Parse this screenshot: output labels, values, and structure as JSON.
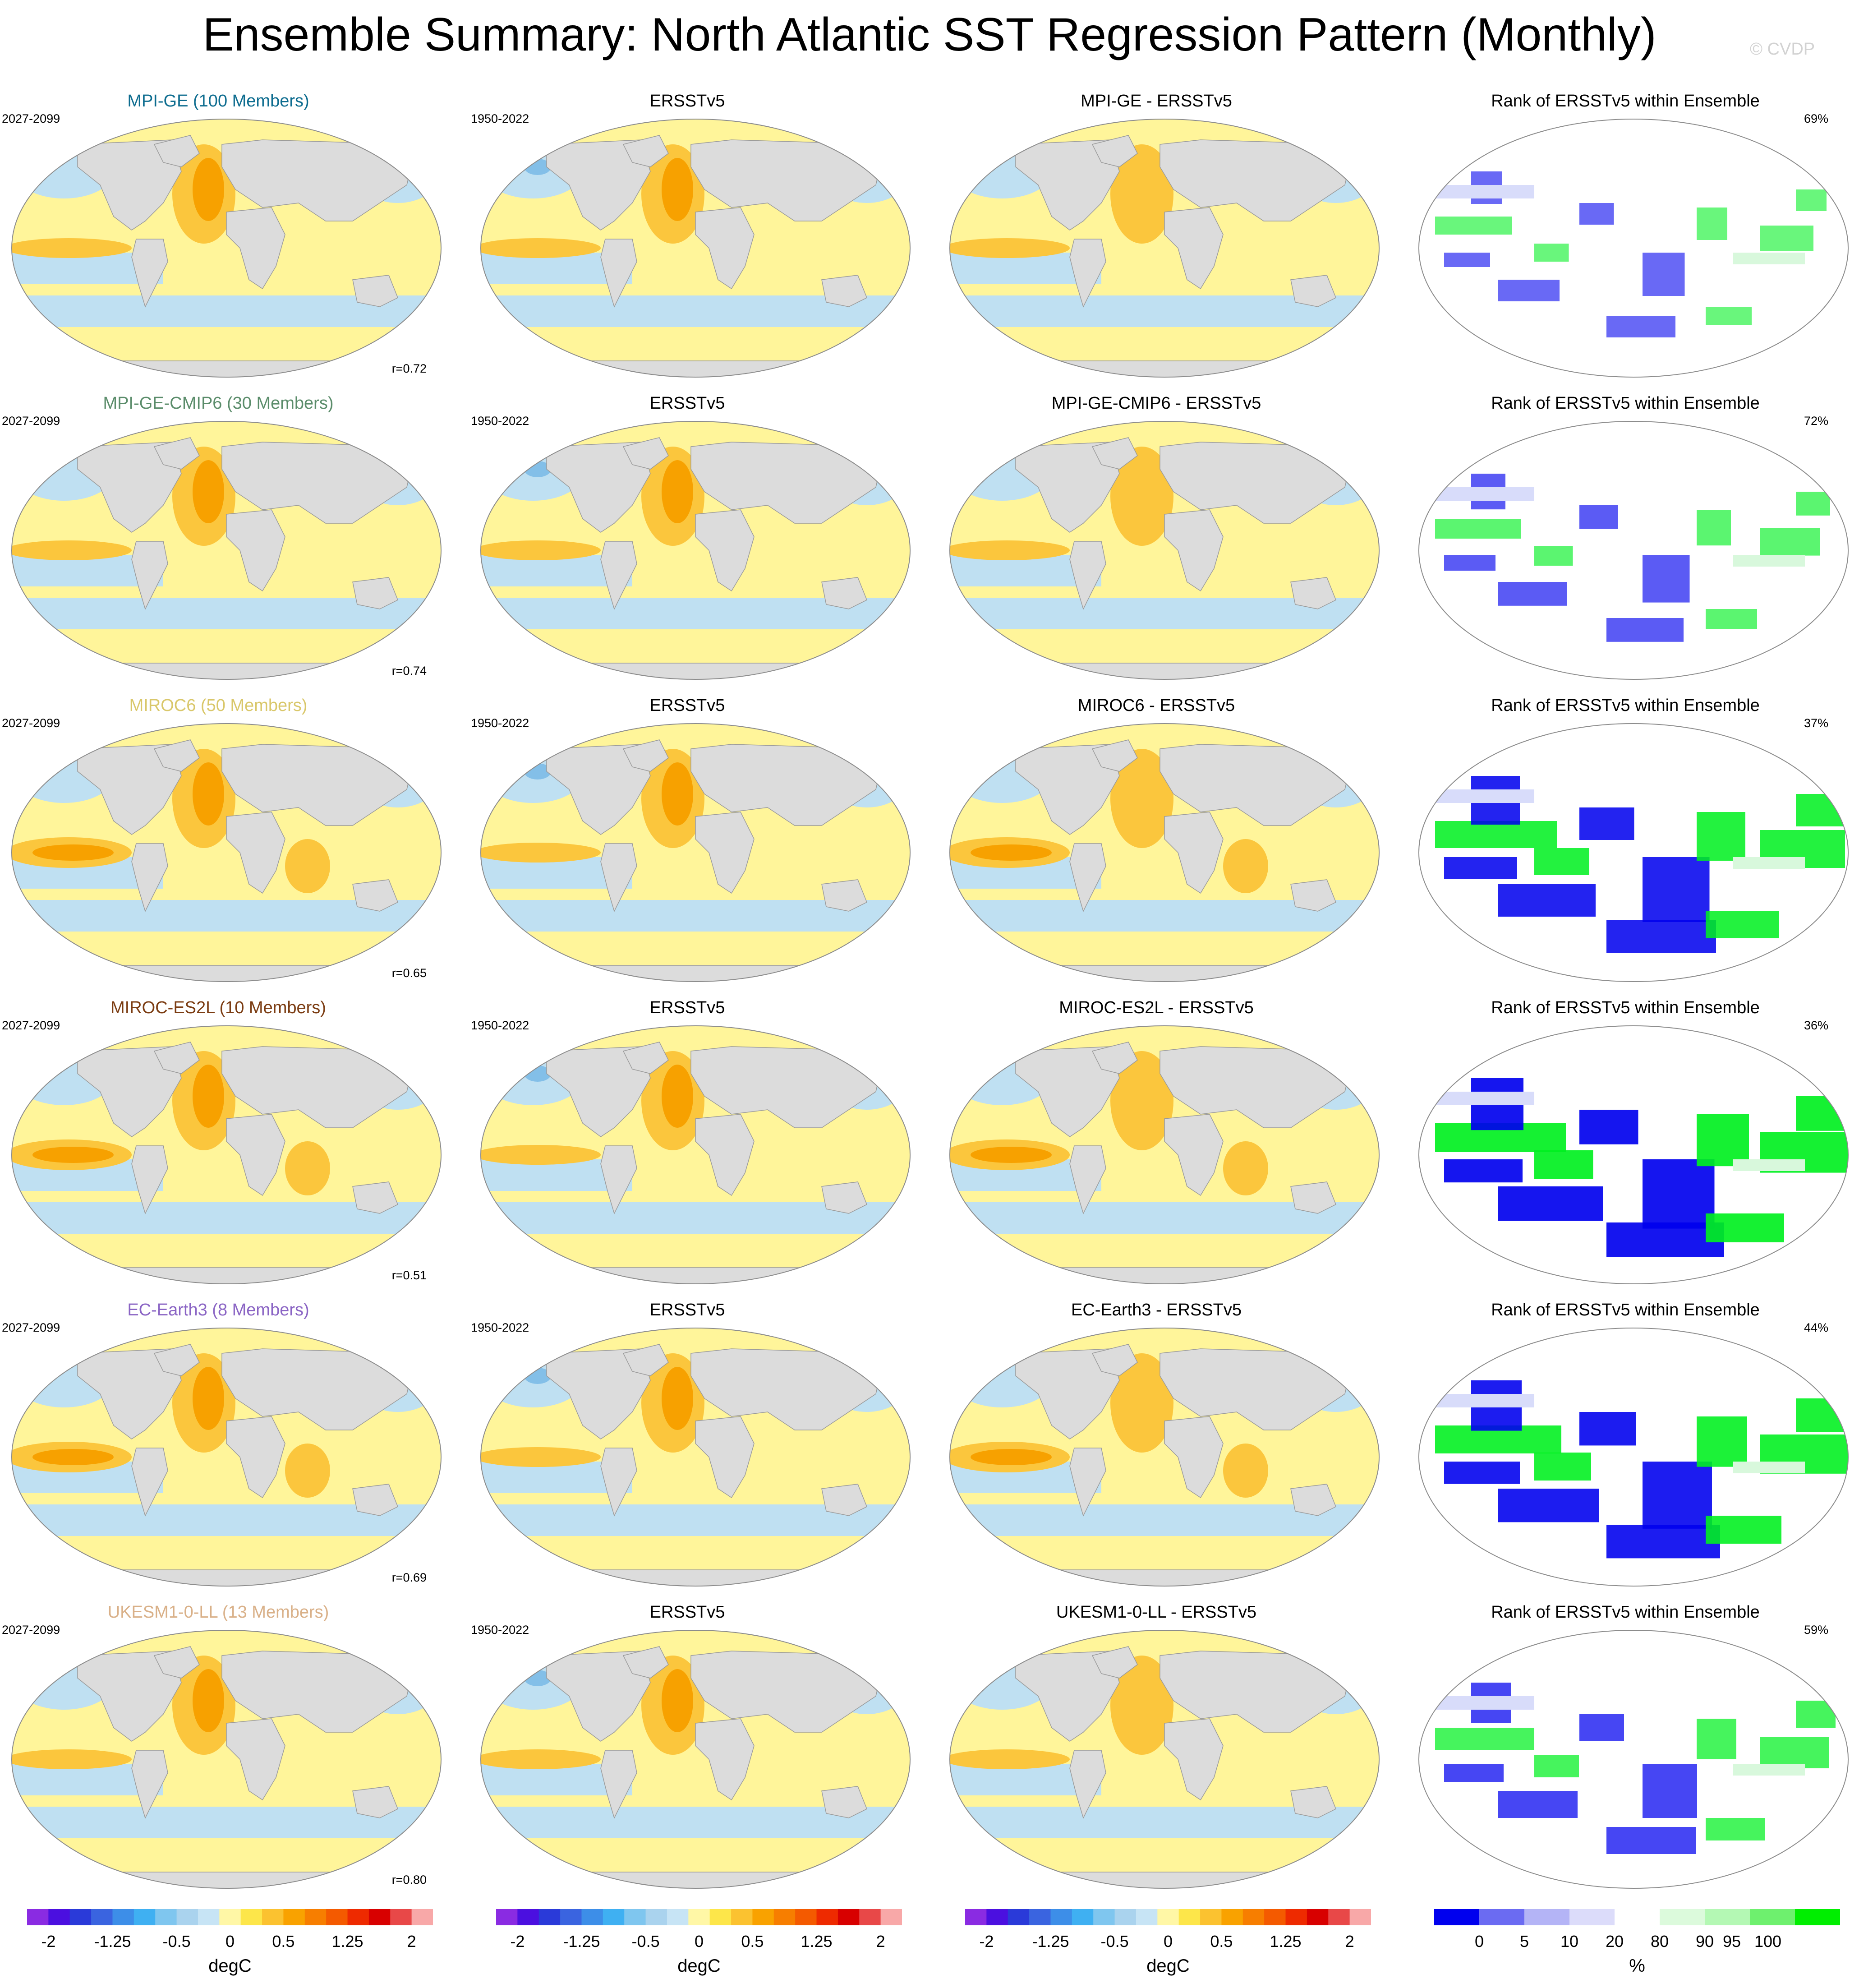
{
  "title": "Ensemble Summary: North Atlantic SST Regression Pattern (Monthly)",
  "watermark": "© CVDP",
  "colors": {
    "ocean_warm": "#fff59a",
    "ocean_cool": "#bfe0f2",
    "land": "#dcdcdc",
    "orange": "#f7a100",
    "orange_light": "#fbc63d",
    "blue_mid": "#83bfe8",
    "rank_low": "#0000ee",
    "rank_high": "#00f020",
    "rank_pale_low": "#d8dcfa",
    "rank_pale_high": "#d8f8dc"
  },
  "rows": [
    {
      "model_title": "MPI-GE (100 Members)",
      "title_color": "#0d6c8f",
      "model_period": "2027-2099",
      "r": "r=0.72",
      "obs_title": "ERSSTv5",
      "obs_period": "1950-2022",
      "diff_title": "MPI-GE - ERSSTv5",
      "rank_title": "Rank of ERSSTv5 within Ensemble",
      "rank_pct": "69%"
    },
    {
      "model_title": "MPI-GE-CMIP6 (30 Members)",
      "title_color": "#5a8c6a",
      "model_period": "2027-2099",
      "r": "r=0.74",
      "obs_title": "ERSSTv5",
      "obs_period": "1950-2022",
      "diff_title": "MPI-GE-CMIP6 - ERSSTv5",
      "rank_title": "Rank of ERSSTv5 within Ensemble",
      "rank_pct": "72%"
    },
    {
      "model_title": "MIROC6 (50 Members)",
      "title_color": "#d9c76a",
      "model_period": "2027-2099",
      "r": "r=0.65",
      "obs_title": "ERSSTv5",
      "obs_period": "1950-2022",
      "diff_title": "MIROC6 - ERSSTv5",
      "rank_title": "Rank of ERSSTv5 within Ensemble",
      "rank_pct": "37%"
    },
    {
      "model_title": "MIROC-ES2L (10 Members)",
      "title_color": "#7b3c12",
      "model_period": "2027-2099",
      "r": "r=0.51",
      "obs_title": "ERSSTv5",
      "obs_period": "1950-2022",
      "diff_title": "MIROC-ES2L - ERSSTv5",
      "rank_title": "Rank of ERSSTv5 within Ensemble",
      "rank_pct": "36%"
    },
    {
      "model_title": "EC-Earth3 (8 Members)",
      "title_color": "#8a64c4",
      "model_period": "2027-2099",
      "r": "r=0.69",
      "obs_title": "ERSSTv5",
      "obs_period": "1950-2022",
      "diff_title": "EC-Earth3 - ERSSTv5",
      "rank_title": "Rank of ERSSTv5 within Ensemble",
      "rank_pct": "44%"
    },
    {
      "model_title": "UKESM1-0-LL (13 Members)",
      "title_color": "#d9b088",
      "model_period": "2027-2099",
      "r": "r=0.80",
      "obs_title": "ERSSTv5",
      "obs_period": "1950-2022",
      "diff_title": "UKESM1-0-LL - ERSSTv5",
      "rank_title": "Rank of ERSSTv5 within Ensemble",
      "rank_pct": "59%"
    }
  ],
  "sst_colorbar": {
    "colors": [
      "#8a2be2",
      "#4b0fe0",
      "#2a3ad9",
      "#3a64e0",
      "#3d8ee8",
      "#3fb0f2",
      "#7fc6ef",
      "#aad3ee",
      "#c7e4f5",
      "#fff7a6",
      "#fde64a",
      "#fbc230",
      "#f9a200",
      "#f77e00",
      "#f45a00",
      "#ee2a00",
      "#d80000",
      "#e84848",
      "#f8a8a8"
    ],
    "ticks": [
      {
        "label": "-2",
        "index": 1
      },
      {
        "label": "-1.25",
        "index": 4
      },
      {
        "label": "-0.5",
        "index": 7
      },
      {
        "label": "0",
        "index": 9.5
      },
      {
        "label": "0.5",
        "index": 12
      },
      {
        "label": "1.25",
        "index": 15
      },
      {
        "label": "2",
        "index": 18
      }
    ],
    "unit": "degC"
  },
  "rank_colorbar": {
    "colors": [
      "#0000ee",
      "#6b6bf2",
      "#b4b4f6",
      "#dcdcfa",
      "#ffffff",
      "#dcfadc",
      "#b4f8b4",
      "#6ef06e",
      "#00ee00"
    ],
    "ticks": [
      {
        "label": "0",
        "index": 1
      },
      {
        "label": "5",
        "index": 2
      },
      {
        "label": "10",
        "index": 3
      },
      {
        "label": "20",
        "index": 4
      },
      {
        "label": "80",
        "index": 5
      },
      {
        "label": "90",
        "index": 6
      },
      {
        "label": "95",
        "index": 6.6
      },
      {
        "label": "100",
        "index": 7.4
      }
    ],
    "unit": "%"
  }
}
